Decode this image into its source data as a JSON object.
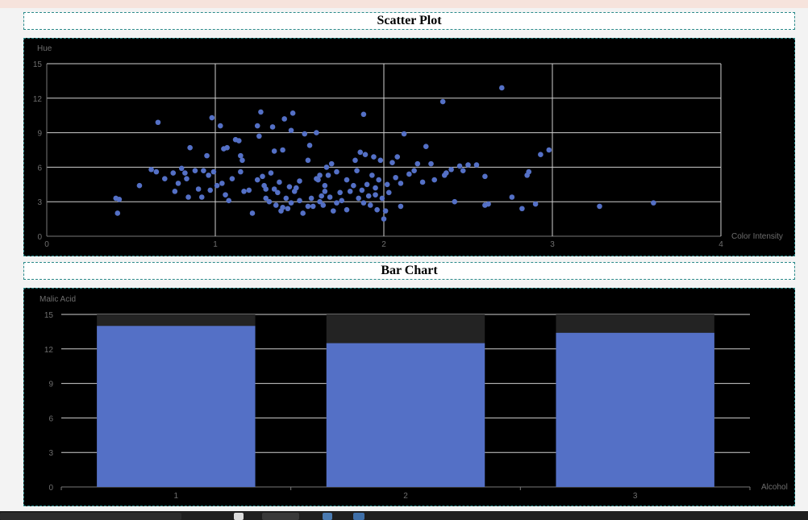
{
  "charts": [
    {
      "panel_title": "Scatter Plot",
      "chart_data": {
        "type": "scatter",
        "xlabel": "Color Intensity",
        "ylabel": "Hue",
        "xlim": [
          0,
          4
        ],
        "ylim": [
          0,
          15
        ],
        "x_ticks": [
          0,
          1,
          2,
          3,
          4
        ],
        "y_ticks": [
          0,
          3,
          6,
          9,
          12,
          15
        ],
        "grid": true,
        "color": "#5470c6",
        "points": [
          [
            0.41,
            3.3
          ],
          [
            0.43,
            3.2
          ],
          [
            0.42,
            2.0
          ],
          [
            0.55,
            4.4
          ],
          [
            0.62,
            5.8
          ],
          [
            0.65,
            5.6
          ],
          [
            0.66,
            9.9
          ],
          [
            0.7,
            5.0
          ],
          [
            0.75,
            5.5
          ],
          [
            0.76,
            3.9
          ],
          [
            0.78,
            4.6
          ],
          [
            0.8,
            5.9
          ],
          [
            0.82,
            5.5
          ],
          [
            0.83,
            5.0
          ],
          [
            0.84,
            3.4
          ],
          [
            0.85,
            7.7
          ],
          [
            0.88,
            5.7
          ],
          [
            0.9,
            4.1
          ],
          [
            0.93,
            5.7
          ],
          [
            0.95,
            7.0
          ],
          [
            0.96,
            5.3
          ],
          [
            0.97,
            4.0
          ],
          [
            0.98,
            10.3
          ],
          [
            0.99,
            5.6
          ],
          [
            1.01,
            4.4
          ],
          [
            1.03,
            9.6
          ],
          [
            1.04,
            4.6
          ],
          [
            1.05,
            7.6
          ],
          [
            1.06,
            3.6
          ],
          [
            1.07,
            7.7
          ],
          [
            1.1,
            5.0
          ],
          [
            1.12,
            8.4
          ],
          [
            1.14,
            8.3
          ],
          [
            1.15,
            7.0
          ],
          [
            1.16,
            6.6
          ],
          [
            1.17,
            3.9
          ],
          [
            1.2,
            4.0
          ],
          [
            1.22,
            2.0
          ],
          [
            1.25,
            9.6
          ],
          [
            1.26,
            8.7
          ],
          [
            1.27,
            10.8
          ],
          [
            1.28,
            5.2
          ],
          [
            1.29,
            4.4
          ],
          [
            1.3,
            4.1
          ],
          [
            1.32,
            3.0
          ],
          [
            1.33,
            5.5
          ],
          [
            1.34,
            9.5
          ],
          [
            1.35,
            7.4
          ],
          [
            1.36,
            2.7
          ],
          [
            1.37,
            3.8
          ],
          [
            1.38,
            4.7
          ],
          [
            1.39,
            2.2
          ],
          [
            1.4,
            7.5
          ],
          [
            1.41,
            10.2
          ],
          [
            1.42,
            3.3
          ],
          [
            1.43,
            2.4
          ],
          [
            1.44,
            4.3
          ],
          [
            1.45,
            9.2
          ],
          [
            1.46,
            10.7
          ],
          [
            1.47,
            3.9
          ],
          [
            1.48,
            4.2
          ],
          [
            1.5,
            3.1
          ],
          [
            1.52,
            2.0
          ],
          [
            1.53,
            8.9
          ],
          [
            1.55,
            6.6
          ],
          [
            1.56,
            7.9
          ],
          [
            1.57,
            3.3
          ],
          [
            1.58,
            2.6
          ],
          [
            1.6,
            9.0
          ],
          [
            1.61,
            4.9
          ],
          [
            1.62,
            5.3
          ],
          [
            1.63,
            3.5
          ],
          [
            1.64,
            2.7
          ],
          [
            1.65,
            4.4
          ],
          [
            1.66,
            6.0
          ],
          [
            1.67,
            5.3
          ],
          [
            1.68,
            3.4
          ],
          [
            1.69,
            6.3
          ],
          [
            1.7,
            2.2
          ],
          [
            1.72,
            5.6
          ],
          [
            1.74,
            3.8
          ],
          [
            1.75,
            3.1
          ],
          [
            1.78,
            2.3
          ],
          [
            1.8,
            3.9
          ],
          [
            1.82,
            4.4
          ],
          [
            1.83,
            6.6
          ],
          [
            1.84,
            5.7
          ],
          [
            1.85,
            3.3
          ],
          [
            1.86,
            7.3
          ],
          [
            1.87,
            4.0
          ],
          [
            1.88,
            10.6
          ],
          [
            1.89,
            7.1
          ],
          [
            1.9,
            4.5
          ],
          [
            1.91,
            3.5
          ],
          [
            1.92,
            2.7
          ],
          [
            1.93,
            5.3
          ],
          [
            1.94,
            6.9
          ],
          [
            1.95,
            3.6
          ],
          [
            1.96,
            2.3
          ],
          [
            1.97,
            4.9
          ],
          [
            1.98,
            6.6
          ],
          [
            1.99,
            3.3
          ],
          [
            2.0,
            1.5
          ],
          [
            2.01,
            2.2
          ],
          [
            2.02,
            4.5
          ],
          [
            2.03,
            3.8
          ],
          [
            2.05,
            6.4
          ],
          [
            2.07,
            5.1
          ],
          [
            2.08,
            6.9
          ],
          [
            2.1,
            4.6
          ],
          [
            2.12,
            8.9
          ],
          [
            2.15,
            5.4
          ],
          [
            2.18,
            5.7
          ],
          [
            2.2,
            6.3
          ],
          [
            2.23,
            4.7
          ],
          [
            2.25,
            7.8
          ],
          [
            2.3,
            4.9
          ],
          [
            2.35,
            11.7
          ],
          [
            2.36,
            5.3
          ],
          [
            2.37,
            5.5
          ],
          [
            2.4,
            5.8
          ],
          [
            2.42,
            3.0
          ],
          [
            2.45,
            6.1
          ],
          [
            2.47,
            5.7
          ],
          [
            2.5,
            6.2
          ],
          [
            2.55,
            6.2
          ],
          [
            2.6,
            2.7
          ],
          [
            2.62,
            2.8
          ],
          [
            2.7,
            12.9
          ],
          [
            2.76,
            3.4
          ],
          [
            2.82,
            2.4
          ],
          [
            2.85,
            5.3
          ],
          [
            2.86,
            5.6
          ],
          [
            2.9,
            2.8
          ],
          [
            2.93,
            7.1
          ],
          [
            2.98,
            7.5
          ],
          [
            3.28,
            2.6
          ],
          [
            3.6,
            2.9
          ],
          [
            2.6,
            5.2
          ],
          [
            1.3,
            3.3
          ],
          [
            1.35,
            4.1
          ],
          [
            1.6,
            5.0
          ],
          [
            1.45,
            2.9
          ],
          [
            0.92,
            3.4
          ],
          [
            1.08,
            3.1
          ],
          [
            1.5,
            4.8
          ],
          [
            1.65,
            3.9
          ],
          [
            1.72,
            2.9
          ],
          [
            1.95,
            4.2
          ],
          [
            2.1,
            2.6
          ],
          [
            1.55,
            2.6
          ],
          [
            1.4,
            2.5
          ],
          [
            1.25,
            4.9
          ],
          [
            1.15,
            5.6
          ],
          [
            1.62,
            3.0
          ],
          [
            1.78,
            4.9
          ],
          [
            1.88,
            2.9
          ],
          [
            2.28,
            6.3
          ]
        ]
      }
    },
    {
      "panel_title": "Bar Chart",
      "chart_data": {
        "type": "bar",
        "xlabel": "Alcohol",
        "ylabel": "Malic Acid",
        "categories": [
          "1",
          "2",
          "3"
        ],
        "values": [
          14.0,
          12.5,
          13.4
        ],
        "ylim": [
          0,
          15
        ],
        "y_ticks": [
          0,
          3,
          6,
          9,
          12,
          15
        ],
        "grid": true,
        "color": "#5470c6",
        "background_bar_color": "#232323"
      }
    }
  ]
}
